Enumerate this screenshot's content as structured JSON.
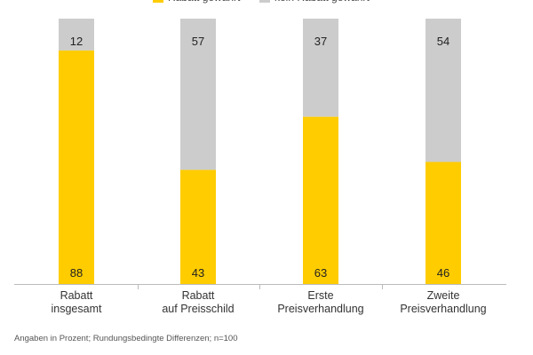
{
  "chart_data": {
    "type": "bar",
    "stacked": true,
    "categories": [
      [
        "Rabatt",
        "insgesamt"
      ],
      [
        "Rabatt",
        "auf Preisschild"
      ],
      [
        "Erste",
        "Preisverhandlung"
      ],
      [
        "Zweite",
        "Preisverhandlung"
      ]
    ],
    "series": [
      {
        "name": "Rabatt gewährt",
        "values": [
          88,
          43,
          63,
          46
        ],
        "color": "#FFCC00"
      },
      {
        "name": "kein Rabatt gewährt",
        "values": [
          12,
          57,
          37,
          54
        ],
        "color": "#CCCCCC"
      }
    ],
    "ylim": [
      0,
      100
    ],
    "grid": false,
    "legend": "top",
    "footnote": "Angaben in Prozent; Rundungsbedingte Differenzen; n=100"
  }
}
